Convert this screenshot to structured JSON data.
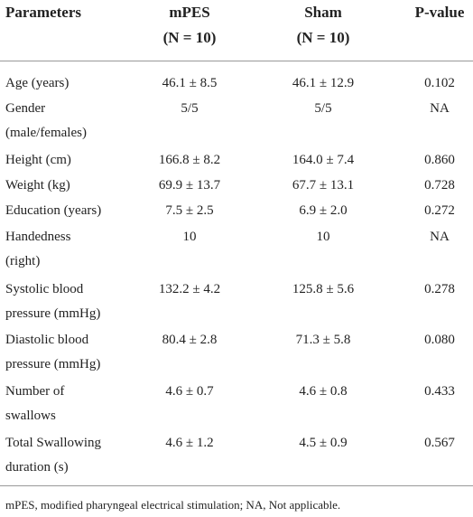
{
  "table": {
    "header": [
      [
        "Parameters"
      ],
      [
        "mPES",
        "(N = 10)"
      ],
      [
        "Sham",
        "(N = 10)"
      ],
      [
        "P-value"
      ]
    ],
    "rows": [
      [
        [
          "Age (years)"
        ],
        "46.1 ± 8.5",
        "46.1 ± 12.9",
        "0.102"
      ],
      [
        [
          "Gender",
          "(male/females)"
        ],
        "5/5",
        "5/5",
        "NA"
      ],
      [
        [
          "Height (cm)"
        ],
        "166.8 ± 8.2",
        "164.0 ± 7.4",
        "0.860"
      ],
      [
        [
          "Weight (kg)"
        ],
        "69.9 ± 13.7",
        "67.7 ± 13.1",
        "0.728"
      ],
      [
        [
          "Education (years)"
        ],
        "7.5 ± 2.5",
        "6.9 ± 2.0",
        "0.272"
      ],
      [
        [
          "Handedness",
          "(right)"
        ],
        "10",
        "10",
        "NA"
      ],
      [
        [
          "Systolic blood",
          "pressure (mmHg)"
        ],
        "132.2 ± 4.2",
        "125.8 ± 5.6",
        "0.278"
      ],
      [
        [
          "Diastolic blood",
          "pressure (mmHg)"
        ],
        "80.4 ± 2.8",
        "71.3 ± 5.8",
        "0.080"
      ],
      [
        [
          "Number of",
          "swallows"
        ],
        "4.6 ± 0.7",
        "4.6 ± 0.8",
        "0.433"
      ],
      [
        [
          "Total Swallowing",
          "duration (s)"
        ],
        "4.6 ± 1.2",
        "4.5 ± 0.9",
        "0.567"
      ]
    ],
    "footnote": "mPES, modified pharyngeal electrical stimulation; NA, Not applicable."
  }
}
